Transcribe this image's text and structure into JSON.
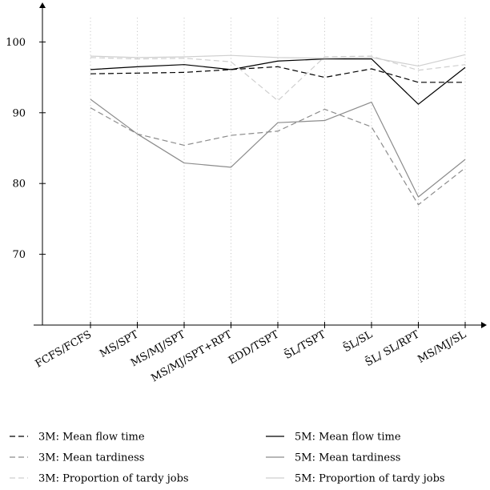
{
  "chart_data": {
    "type": "line",
    "categories": [
      "FCFS/FCFS",
      "MS/SPT",
      "MS/MJ/SPT",
      "MS/MJ/SPT+RPT",
      "EDD/TSPT",
      "S̄L/TSPT",
      "S̄L/SL",
      "S̄L/ SL/RPT",
      "MS/MJ/SL"
    ],
    "ylim": [
      60,
      104
    ],
    "yticks": [
      70,
      80,
      90,
      100
    ],
    "grid": "vertical dotted",
    "legend_position": "bottom",
    "series": [
      {
        "name": "3M: Mean flow time",
        "color": "#000000",
        "dash": "dashed",
        "values": [
          95.5,
          95.6,
          95.7,
          96.1,
          96.5,
          95.0,
          96.2,
          94.3,
          94.3
        ]
      },
      {
        "name": "5M: Mean flow time",
        "color": "#000000",
        "dash": "solid",
        "values": [
          96.1,
          96.5,
          96.8,
          96.1,
          97.3,
          97.6,
          97.6,
          91.2,
          96.4
        ]
      },
      {
        "name": "3M: Mean tardiness",
        "color": "#8c8c8c",
        "dash": "dashed",
        "values": [
          90.7,
          87.0,
          85.4,
          86.8,
          87.4,
          90.5,
          88.0,
          77.0,
          82.2
        ]
      },
      {
        "name": "5M: Mean tardiness",
        "color": "#8c8c8c",
        "dash": "solid",
        "values": [
          91.9,
          87.0,
          82.9,
          82.3,
          88.6,
          88.9,
          91.5,
          78.1,
          83.4
        ]
      },
      {
        "name": "3M: Proportion of tardy jobs",
        "color": "#cfcfcf",
        "dash": "dashed",
        "values": [
          97.8,
          97.6,
          97.7,
          97.2,
          91.7,
          97.9,
          98.0,
          96.0,
          96.8
        ]
      },
      {
        "name": "5M: Proportion of tardy jobs",
        "color": "#cfcfcf",
        "dash": "solid",
        "values": [
          98.0,
          97.8,
          97.9,
          98.1,
          97.8,
          97.7,
          97.8,
          96.6,
          98.2
        ]
      }
    ]
  }
}
